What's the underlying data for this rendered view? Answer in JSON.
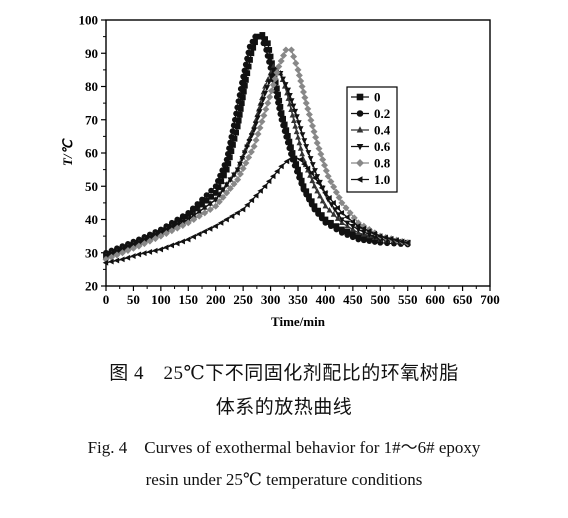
{
  "chart_data": {
    "type": "line",
    "xlabel": "Time/min",
    "ylabel": "T/℃",
    "xlim": [
      0,
      700
    ],
    "ylim": [
      20,
      100
    ],
    "xticks": [
      0,
      50,
      100,
      150,
      200,
      250,
      300,
      350,
      400,
      450,
      500,
      550,
      600,
      650,
      700
    ],
    "yticks": [
      20,
      30,
      40,
      50,
      60,
      70,
      80,
      90,
      100
    ],
    "grid": false,
    "legend": "right",
    "series": [
      {
        "name": "0",
        "marker": "square",
        "color": "#111111",
        "points": [
          [
            0,
            29
          ],
          [
            30,
            31
          ],
          [
            60,
            33
          ],
          [
            100,
            36
          ],
          [
            150,
            41
          ],
          [
            200,
            48
          ],
          [
            220,
            55
          ],
          [
            240,
            68
          ],
          [
            255,
            82
          ],
          [
            265,
            90
          ],
          [
            275,
            95
          ],
          [
            285,
            95.5
          ],
          [
            295,
            93
          ],
          [
            305,
            85
          ],
          [
            320,
            72
          ],
          [
            340,
            60
          ],
          [
            360,
            50
          ],
          [
            380,
            44
          ],
          [
            400,
            40
          ],
          [
            430,
            37
          ],
          [
            460,
            35
          ],
          [
            500,
            34
          ],
          [
            550,
            33
          ]
        ]
      },
      {
        "name": "0.2",
        "marker": "circle",
        "color": "#111111",
        "points": [
          [
            0,
            30
          ],
          [
            30,
            32
          ],
          [
            60,
            34
          ],
          [
            100,
            37
          ],
          [
            150,
            42
          ],
          [
            200,
            50
          ],
          [
            220,
            58
          ],
          [
            235,
            70
          ],
          [
            250,
            83
          ],
          [
            262,
            92
          ],
          [
            272,
            95
          ],
          [
            282,
            95
          ],
          [
            292,
            91
          ],
          [
            305,
            82
          ],
          [
            320,
            70
          ],
          [
            340,
            58
          ],
          [
            360,
            49
          ],
          [
            380,
            43
          ],
          [
            400,
            39
          ],
          [
            430,
            36
          ],
          [
            460,
            34
          ],
          [
            500,
            33
          ],
          [
            550,
            32.5
          ]
        ]
      },
      {
        "name": "0.4",
        "marker": "triangle-up",
        "color": "#333333",
        "points": [
          [
            0,
            29
          ],
          [
            30,
            31
          ],
          [
            60,
            33
          ],
          [
            100,
            36
          ],
          [
            150,
            40
          ],
          [
            200,
            46
          ],
          [
            240,
            55
          ],
          [
            270,
            68
          ],
          [
            290,
            80
          ],
          [
            305,
            86
          ],
          [
            318,
            84
          ],
          [
            330,
            78
          ],
          [
            345,
            68
          ],
          [
            360,
            58
          ],
          [
            380,
            50
          ],
          [
            400,
            44
          ],
          [
            430,
            39
          ],
          [
            460,
            36
          ],
          [
            500,
            34
          ],
          [
            550,
            33
          ]
        ]
      },
      {
        "name": "0.6",
        "marker": "triangle-down",
        "color": "#111111",
        "points": [
          [
            0,
            29
          ],
          [
            30,
            31
          ],
          [
            60,
            33
          ],
          [
            100,
            36
          ],
          [
            150,
            40
          ],
          [
            200,
            46
          ],
          [
            240,
            55
          ],
          [
            270,
            67
          ],
          [
            290,
            78
          ],
          [
            305,
            85
          ],
          [
            318,
            84
          ],
          [
            332,
            79
          ],
          [
            348,
            71
          ],
          [
            365,
            62
          ],
          [
            385,
            53
          ],
          [
            405,
            46
          ],
          [
            430,
            40
          ],
          [
            460,
            37
          ],
          [
            500,
            34
          ],
          [
            550,
            33
          ]
        ]
      },
      {
        "name": "0.8",
        "marker": "diamond",
        "color": "#888888",
        "points": [
          [
            0,
            28
          ],
          [
            30,
            30
          ],
          [
            60,
            32
          ],
          [
            100,
            35
          ],
          [
            150,
            39
          ],
          [
            200,
            44
          ],
          [
            240,
            52
          ],
          [
            270,
            62
          ],
          [
            295,
            75
          ],
          [
            315,
            86
          ],
          [
            328,
            91
          ],
          [
            338,
            91
          ],
          [
            350,
            85
          ],
          [
            365,
            75
          ],
          [
            385,
            63
          ],
          [
            405,
            53
          ],
          [
            430,
            45
          ],
          [
            460,
            39
          ],
          [
            500,
            35
          ],
          [
            550,
            33
          ]
        ]
      },
      {
        "name": "1.0",
        "marker": "triangle-left",
        "color": "#111111",
        "points": [
          [
            0,
            27
          ],
          [
            30,
            28
          ],
          [
            60,
            29.5
          ],
          [
            100,
            31
          ],
          [
            150,
            34
          ],
          [
            200,
            38
          ],
          [
            250,
            43
          ],
          [
            290,
            50
          ],
          [
            320,
            56
          ],
          [
            340,
            59
          ],
          [
            355,
            58
          ],
          [
            375,
            54
          ],
          [
            400,
            48
          ],
          [
            430,
            42
          ],
          [
            460,
            38
          ],
          [
            500,
            35
          ],
          [
            550,
            33
          ]
        ]
      }
    ]
  },
  "caption": {
    "cn_line1": "图 4　25℃下不同固化剂配比的环氧树脂",
    "cn_line2": "体系的放热曲线",
    "en_line1": "Fig. 4　Curves of exothermal behavior for 1#～6# epoxy",
    "en_line2": "resin under 25℃ temperature conditions"
  }
}
